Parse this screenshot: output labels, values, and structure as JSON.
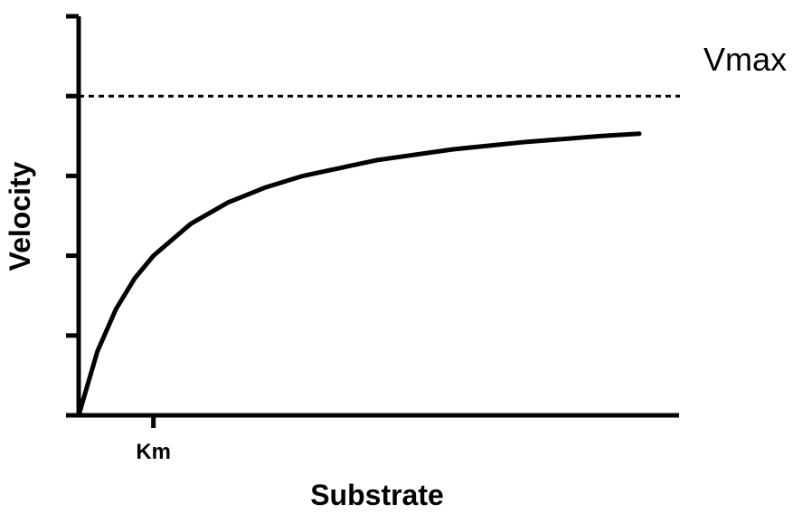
{
  "chart_data": {
    "type": "line",
    "title": "",
    "xlabel": "Substrate",
    "ylabel": "Velocity",
    "x_ticks": [
      {
        "label": "Km",
        "x": 1
      }
    ],
    "y_tick_count": 5,
    "xlim": [
      0,
      8
    ],
    "ylim": [
      0,
      1.25
    ],
    "grid": false,
    "legend": "none",
    "reference_line": {
      "label": "Vmax",
      "y": 1.0,
      "style": "dashed"
    },
    "series": [
      {
        "x": [
          0,
          0.25,
          0.5,
          0.75,
          1,
          1.5,
          2,
          2.5,
          3,
          4,
          5,
          6,
          7,
          7.5
        ],
        "y": [
          0,
          0.2,
          0.333,
          0.429,
          0.5,
          0.6,
          0.667,
          0.714,
          0.75,
          0.8,
          0.833,
          0.857,
          0.875,
          0.882
        ]
      }
    ],
    "colors": {
      "line": "#000000",
      "axes": "#000000"
    }
  }
}
